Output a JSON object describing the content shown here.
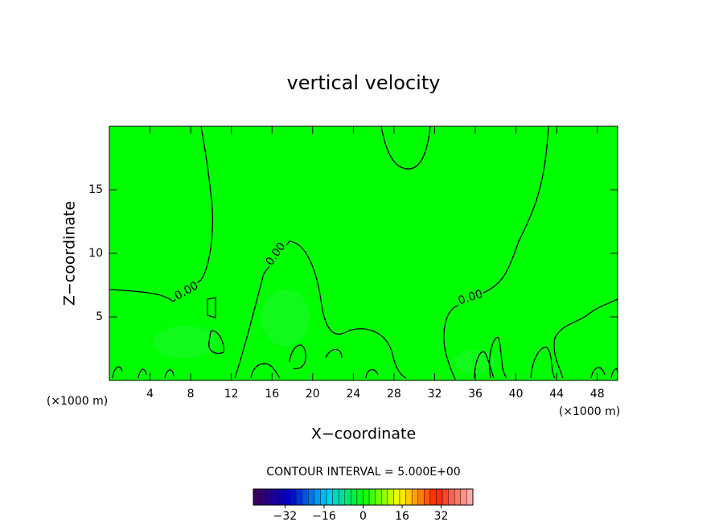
{
  "chart_data": {
    "type": "contour",
    "title": "vertical velocity",
    "x_label": "X−coordinate",
    "y_label": "Z−coordinate",
    "x_unit_label": "(×1000 m)",
    "xlim": [
      0,
      50
    ],
    "xticks": [
      4,
      8,
      12,
      16,
      20,
      24,
      28,
      32,
      36,
      40,
      44,
      48
    ],
    "ylim": [
      0,
      20
    ],
    "yticks": [
      5,
      10,
      15
    ],
    "contour_level": {
      "value": 0,
      "label": "0.00"
    },
    "contour_interval_label": "CONTOUR INTERVAL = 5.000E+00",
    "clim": [
      -45,
      45
    ],
    "cticks": [
      {
        "value": -32,
        "label": "−32"
      },
      {
        "value": -16,
        "label": "−16"
      },
      0,
      16,
      32
    ],
    "colormap": [
      "#3c0050",
      "#0000c8",
      "#00c8ff",
      "#00ff00",
      "#ffff00",
      "#ff2000",
      "#ffb8b8"
    ]
  }
}
